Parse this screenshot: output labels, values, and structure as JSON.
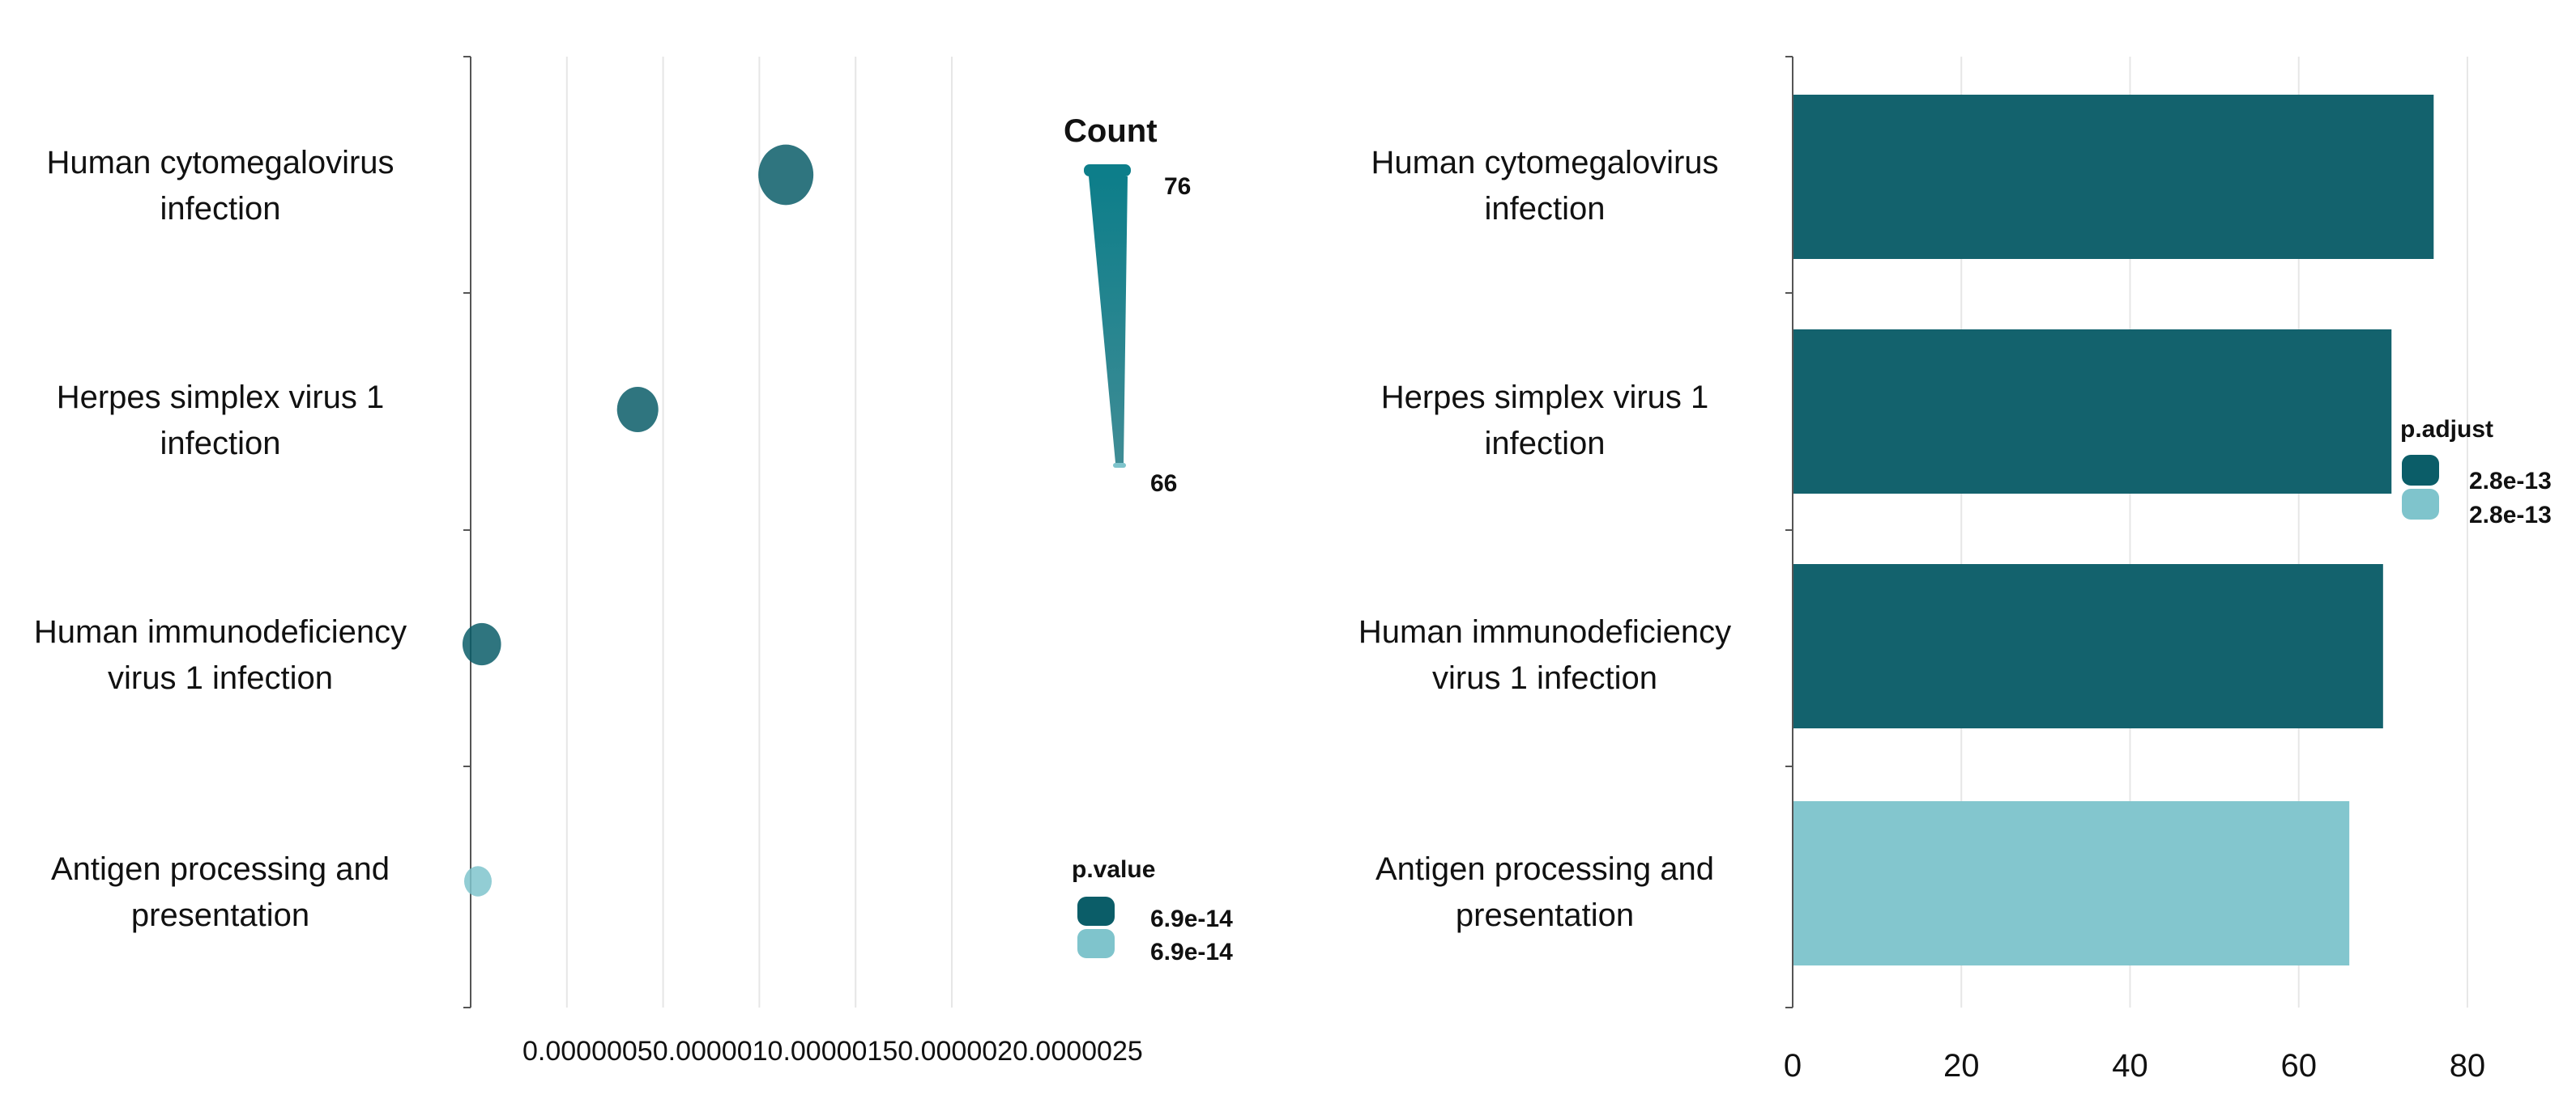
{
  "colors": {
    "dark": "#0b5d68",
    "light": "#7fc4cc",
    "grid": "#e6e6e6",
    "axis": "#555555",
    "count_gradient_top": "#0d7e8a",
    "count_gradient_bottom": "#3f8c95"
  },
  "chart_data": [
    {
      "type": "scatter",
      "title": "",
      "categories": [
        [
          "Human cytomegalovirus",
          "infection"
        ],
        [
          "Herpes simplex virus 1",
          "infection"
        ],
        [
          "Human immunodeficiency",
          "virus 1 infection"
        ],
        [
          "Antigen processing and",
          "presentation"
        ]
      ],
      "x": [
        1.6e-06,
        8.3e-07,
        2e-08,
        0.0
      ],
      "count": [
        76,
        71,
        70,
        66
      ],
      "p_value_level": [
        "dark",
        "dark",
        "dark",
        "light"
      ],
      "xlim": [
        0.0,
        2.9e-06
      ],
      "x_ticks": [
        5e-07,
        1e-06,
        1.5e-06,
        2e-06,
        2.5e-06
      ],
      "x_tick_labels_text": "0.00000050.0000010.00000150.0000020.0000025",
      "size_legend": {
        "title": "Count",
        "max_label": "76",
        "min_label": "66"
      },
      "color_legend": {
        "title": "p.value",
        "entries": [
          "6.9e-14",
          "6.9e-14"
        ]
      }
    },
    {
      "type": "bar",
      "orientation": "horizontal",
      "title": "",
      "categories": [
        [
          "Human cytomegalovirus",
          "infection"
        ],
        [
          "Herpes simplex virus 1",
          "infection"
        ],
        [
          "Human immunodeficiency",
          "virus 1 infection"
        ],
        [
          "Antigen processing and",
          "presentation"
        ]
      ],
      "values": [
        76,
        71,
        70,
        66
      ],
      "p_adjust_level": [
        "dark",
        "dark",
        "dark",
        "light"
      ],
      "xlim": [
        0,
        85
      ],
      "x_ticks": [
        0,
        20,
        40,
        60,
        80
      ],
      "x_tick_labels": [
        "0",
        "20",
        "40",
        "60",
        "80"
      ],
      "color_legend": {
        "title": "p.adjust",
        "entries": [
          "2.8e-13",
          "2.8e-13"
        ]
      }
    }
  ]
}
